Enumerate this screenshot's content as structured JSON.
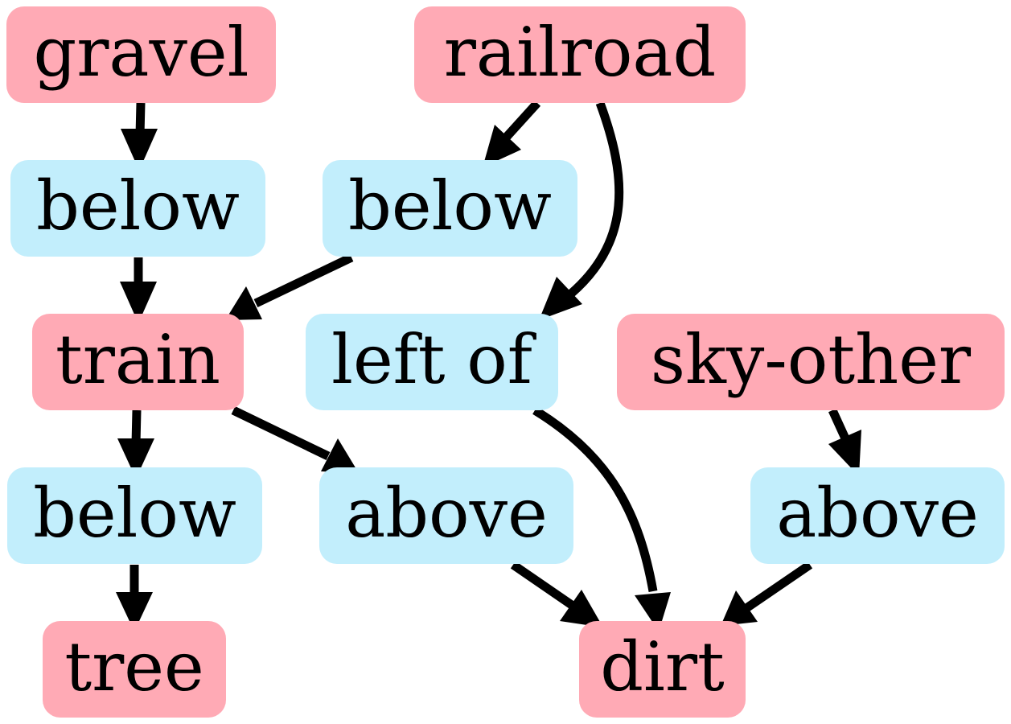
{
  "colors": {
    "object_fill": "#ffaab5",
    "relation_fill": "#c2eefc",
    "edge": "#000000"
  },
  "nodes": {
    "gravel": "gravel",
    "railroad": "railroad",
    "below_1": "below",
    "below_2": "below",
    "train": "train",
    "left_of": "left of",
    "sky_other": "sky-other",
    "below_3": "below",
    "above_1": "above",
    "above_2": "above",
    "tree": "tree",
    "dirt": "dirt"
  },
  "edges": [
    {
      "from": "gravel",
      "to": "below_1"
    },
    {
      "from": "below_1",
      "to": "train"
    },
    {
      "from": "railroad",
      "to": "below_2"
    },
    {
      "from": "below_2",
      "to": "train"
    },
    {
      "from": "railroad",
      "to": "left_of"
    },
    {
      "from": "train",
      "to": "below_3"
    },
    {
      "from": "below_3",
      "to": "tree"
    },
    {
      "from": "train",
      "to": "above_1"
    },
    {
      "from": "above_1",
      "to": "dirt"
    },
    {
      "from": "left_of",
      "to": "dirt"
    },
    {
      "from": "sky_other",
      "to": "above_2"
    },
    {
      "from": "above_2",
      "to": "dirt"
    }
  ]
}
